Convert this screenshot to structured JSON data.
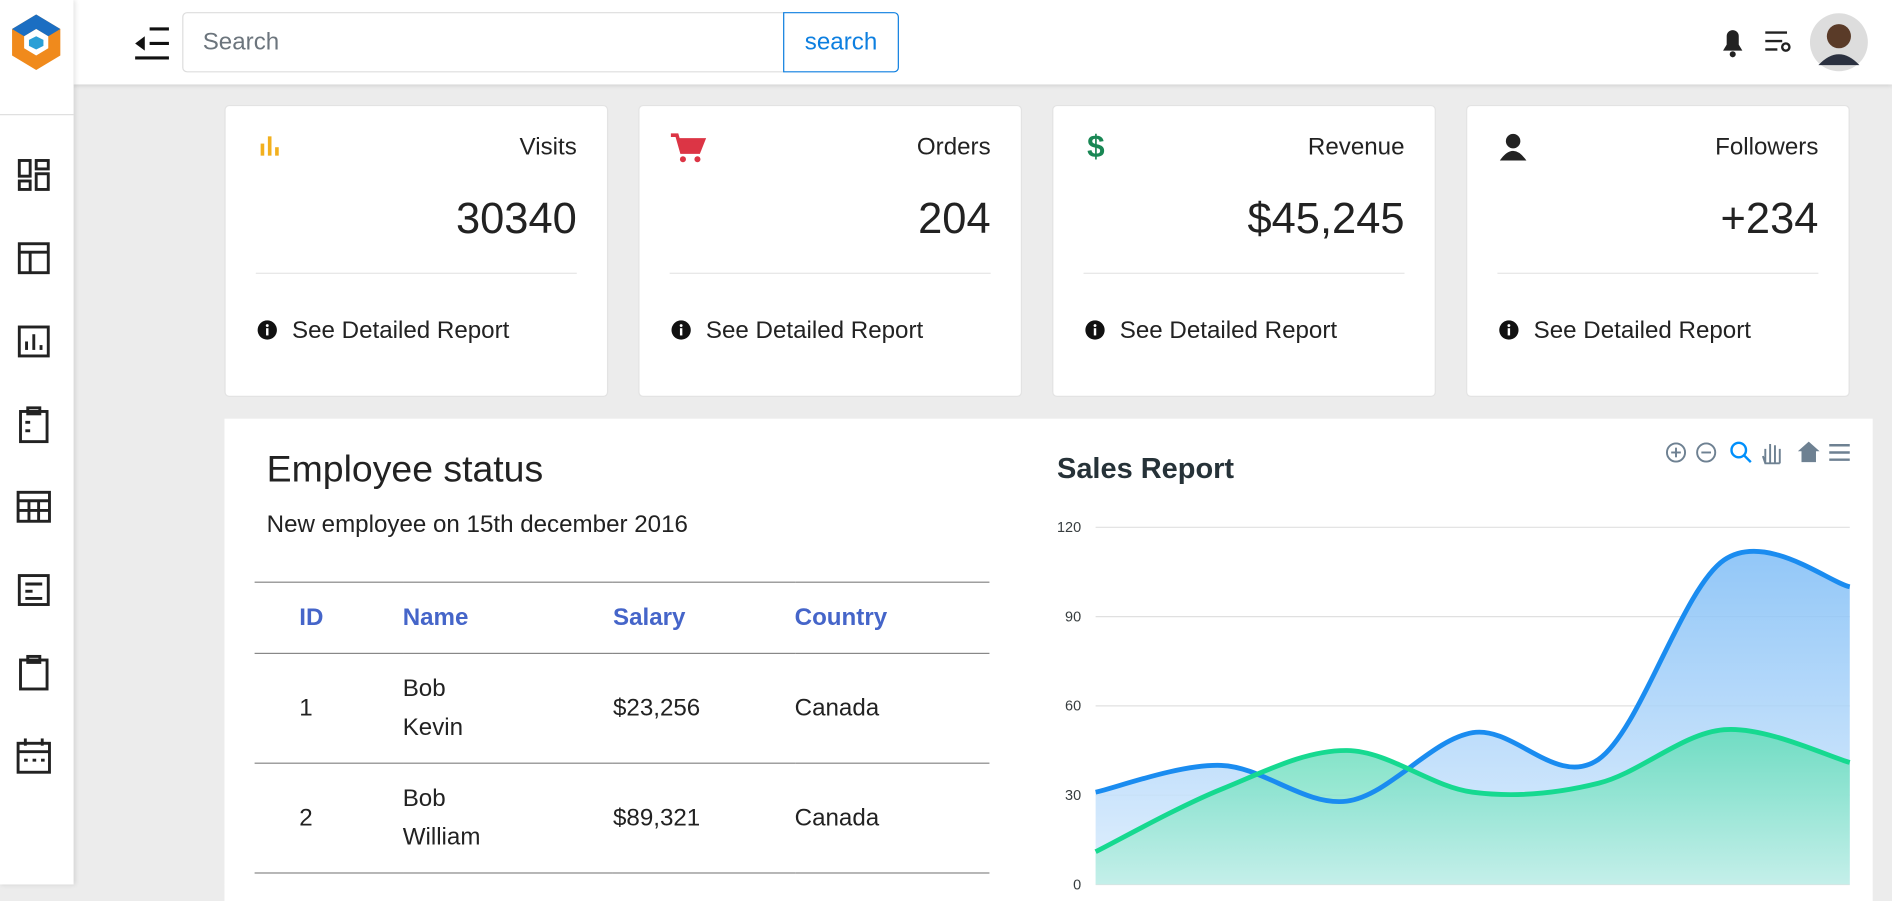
{
  "header": {
    "search_placeholder": "Search",
    "search_button": "search"
  },
  "cards": [
    {
      "label": "Visits",
      "value": "30340",
      "link": "See Detailed Report"
    },
    {
      "label": "Orders",
      "value": "204",
      "link": "See Detailed Report"
    },
    {
      "label": "Revenue",
      "value": "$45,245",
      "link": "See Detailed Report"
    },
    {
      "label": "Followers",
      "value": "+234",
      "link": "See Detailed Report"
    }
  ],
  "employee_status": {
    "title": "Employee status",
    "subtitle": "New employee on 15th december 2016",
    "columns": [
      "ID",
      "Name",
      "Salary",
      "Country"
    ],
    "rows": [
      [
        "1",
        "Bob Kevin",
        "$23,256",
        "Canada"
      ],
      [
        "2",
        "Bob William",
        "$89,321",
        "Canada"
      ]
    ]
  },
  "sales_report": {
    "type": "area",
    "title": "Sales Report",
    "ylim": [
      0,
      120
    ],
    "yticks": [
      0,
      30,
      60,
      90,
      120
    ],
    "grid": true,
    "series": [
      {
        "color": "#1a8cf0",
        "values": [
          31,
          40,
          28,
          51,
          42,
          109,
          100
        ]
      },
      {
        "color": "#16d990",
        "values": [
          11,
          32,
          45,
          31,
          34,
          52,
          41
        ]
      }
    ]
  }
}
